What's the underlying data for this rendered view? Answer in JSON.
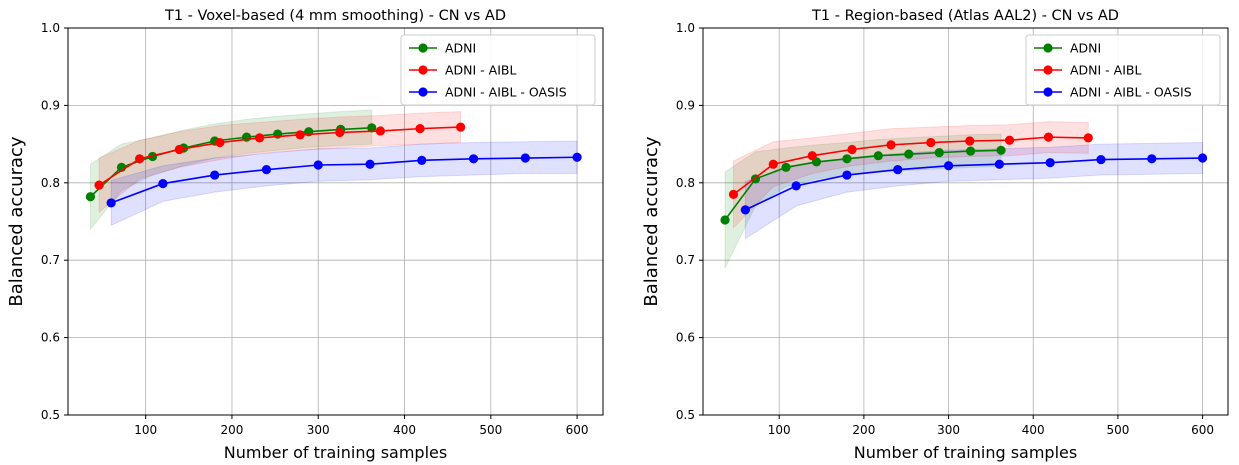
{
  "chart_data": [
    {
      "type": "line",
      "title": "T1 - Voxel-based (4 mm smoothing) - CN vs AD",
      "xlabel": "Number of training samples",
      "ylabel": "Balanced accuracy",
      "xlim": [
        10,
        630
      ],
      "ylim": [
        0.5,
        1.0
      ],
      "xticks": [
        100,
        200,
        300,
        400,
        500,
        600
      ],
      "yticks": [
        0.5,
        0.6,
        0.7,
        0.8,
        0.9,
        1.0
      ],
      "grid": true,
      "legend_position": "top-right",
      "series": [
        {
          "name": "ADNI",
          "color": "#008000",
          "x": [
            36,
            72,
            108,
            144,
            180,
            217,
            253,
            289,
            326,
            362
          ],
          "y": [
            0.782,
            0.82,
            0.834,
            0.845,
            0.854,
            0.859,
            0.863,
            0.866,
            0.869,
            0.871
          ],
          "lower": [
            0.74,
            0.79,
            0.81,
            0.822,
            0.832,
            0.838,
            0.842,
            0.846,
            0.848,
            0.85
          ],
          "upper": [
            0.824,
            0.85,
            0.858,
            0.868,
            0.876,
            0.882,
            0.886,
            0.889,
            0.892,
            0.894
          ]
        },
        {
          "name": "ADNI - AIBL",
          "color": "#ff0000",
          "x": [
            46,
            93,
            139,
            186,
            232,
            279,
            325,
            372,
            418,
            465
          ],
          "y": [
            0.797,
            0.831,
            0.843,
            0.852,
            0.858,
            0.862,
            0.865,
            0.867,
            0.87,
            0.872
          ],
          "lower": [
            0.762,
            0.805,
            0.82,
            0.83,
            0.838,
            0.842,
            0.845,
            0.848,
            0.85,
            0.852
          ],
          "upper": [
            0.832,
            0.855,
            0.866,
            0.874,
            0.878,
            0.882,
            0.885,
            0.887,
            0.89,
            0.892
          ]
        },
        {
          "name": "ADNI - AIBL - OASIS",
          "color": "#0000ff",
          "x": [
            60,
            120,
            180,
            240,
            300,
            360,
            420,
            480,
            540,
            600
          ],
          "y": [
            0.774,
            0.799,
            0.81,
            0.817,
            0.823,
            0.824,
            0.829,
            0.831,
            0.832,
            0.833
          ],
          "lower": [
            0.745,
            0.776,
            0.788,
            0.796,
            0.802,
            0.804,
            0.808,
            0.81,
            0.812,
            0.812
          ],
          "upper": [
            0.803,
            0.822,
            0.832,
            0.838,
            0.844,
            0.845,
            0.85,
            0.852,
            0.853,
            0.854
          ]
        }
      ]
    },
    {
      "type": "line",
      "title": "T1 - Region-based (Atlas AAL2) - CN vs AD",
      "xlabel": "Number of training samples",
      "ylabel": "Balanced accuracy",
      "xlim": [
        10,
        630
      ],
      "ylim": [
        0.5,
        1.0
      ],
      "xticks": [
        100,
        200,
        300,
        400,
        500,
        600
      ],
      "yticks": [
        0.5,
        0.6,
        0.7,
        0.8,
        0.9,
        1.0
      ],
      "grid": true,
      "legend_position": "top-right",
      "series": [
        {
          "name": "ADNI",
          "color": "#008000",
          "x": [
            36,
            72,
            108,
            144,
            180,
            217,
            253,
            289,
            326,
            362
          ],
          "y": [
            0.752,
            0.805,
            0.82,
            0.827,
            0.831,
            0.835,
            0.837,
            0.839,
            0.841,
            0.842
          ],
          "lower": [
            0.69,
            0.77,
            0.795,
            0.805,
            0.81,
            0.814,
            0.816,
            0.818,
            0.82,
            0.821
          ],
          "upper": [
            0.814,
            0.84,
            0.845,
            0.849,
            0.852,
            0.856,
            0.858,
            0.86,
            0.862,
            0.863
          ]
        },
        {
          "name": "ADNI - AIBL",
          "color": "#ff0000",
          "x": [
            46,
            93,
            139,
            186,
            232,
            279,
            325,
            372,
            418,
            465
          ],
          "y": [
            0.785,
            0.824,
            0.835,
            0.843,
            0.849,
            0.852,
            0.854,
            0.855,
            0.859,
            0.858
          ],
          "lower": [
            0.742,
            0.795,
            0.812,
            0.822,
            0.828,
            0.832,
            0.834,
            0.835,
            0.839,
            0.838
          ],
          "upper": [
            0.828,
            0.853,
            0.858,
            0.864,
            0.87,
            0.872,
            0.874,
            0.875,
            0.879,
            0.878
          ]
        },
        {
          "name": "ADNI - AIBL - OASIS",
          "color": "#0000ff",
          "x": [
            60,
            120,
            180,
            240,
            300,
            360,
            420,
            480,
            540,
            600
          ],
          "y": [
            0.765,
            0.796,
            0.81,
            0.817,
            0.822,
            0.824,
            0.826,
            0.83,
            0.831,
            0.832
          ],
          "lower": [
            0.728,
            0.77,
            0.788,
            0.796,
            0.802,
            0.804,
            0.806,
            0.81,
            0.811,
            0.812
          ],
          "upper": [
            0.802,
            0.822,
            0.832,
            0.838,
            0.842,
            0.844,
            0.846,
            0.85,
            0.851,
            0.852
          ]
        }
      ]
    }
  ]
}
